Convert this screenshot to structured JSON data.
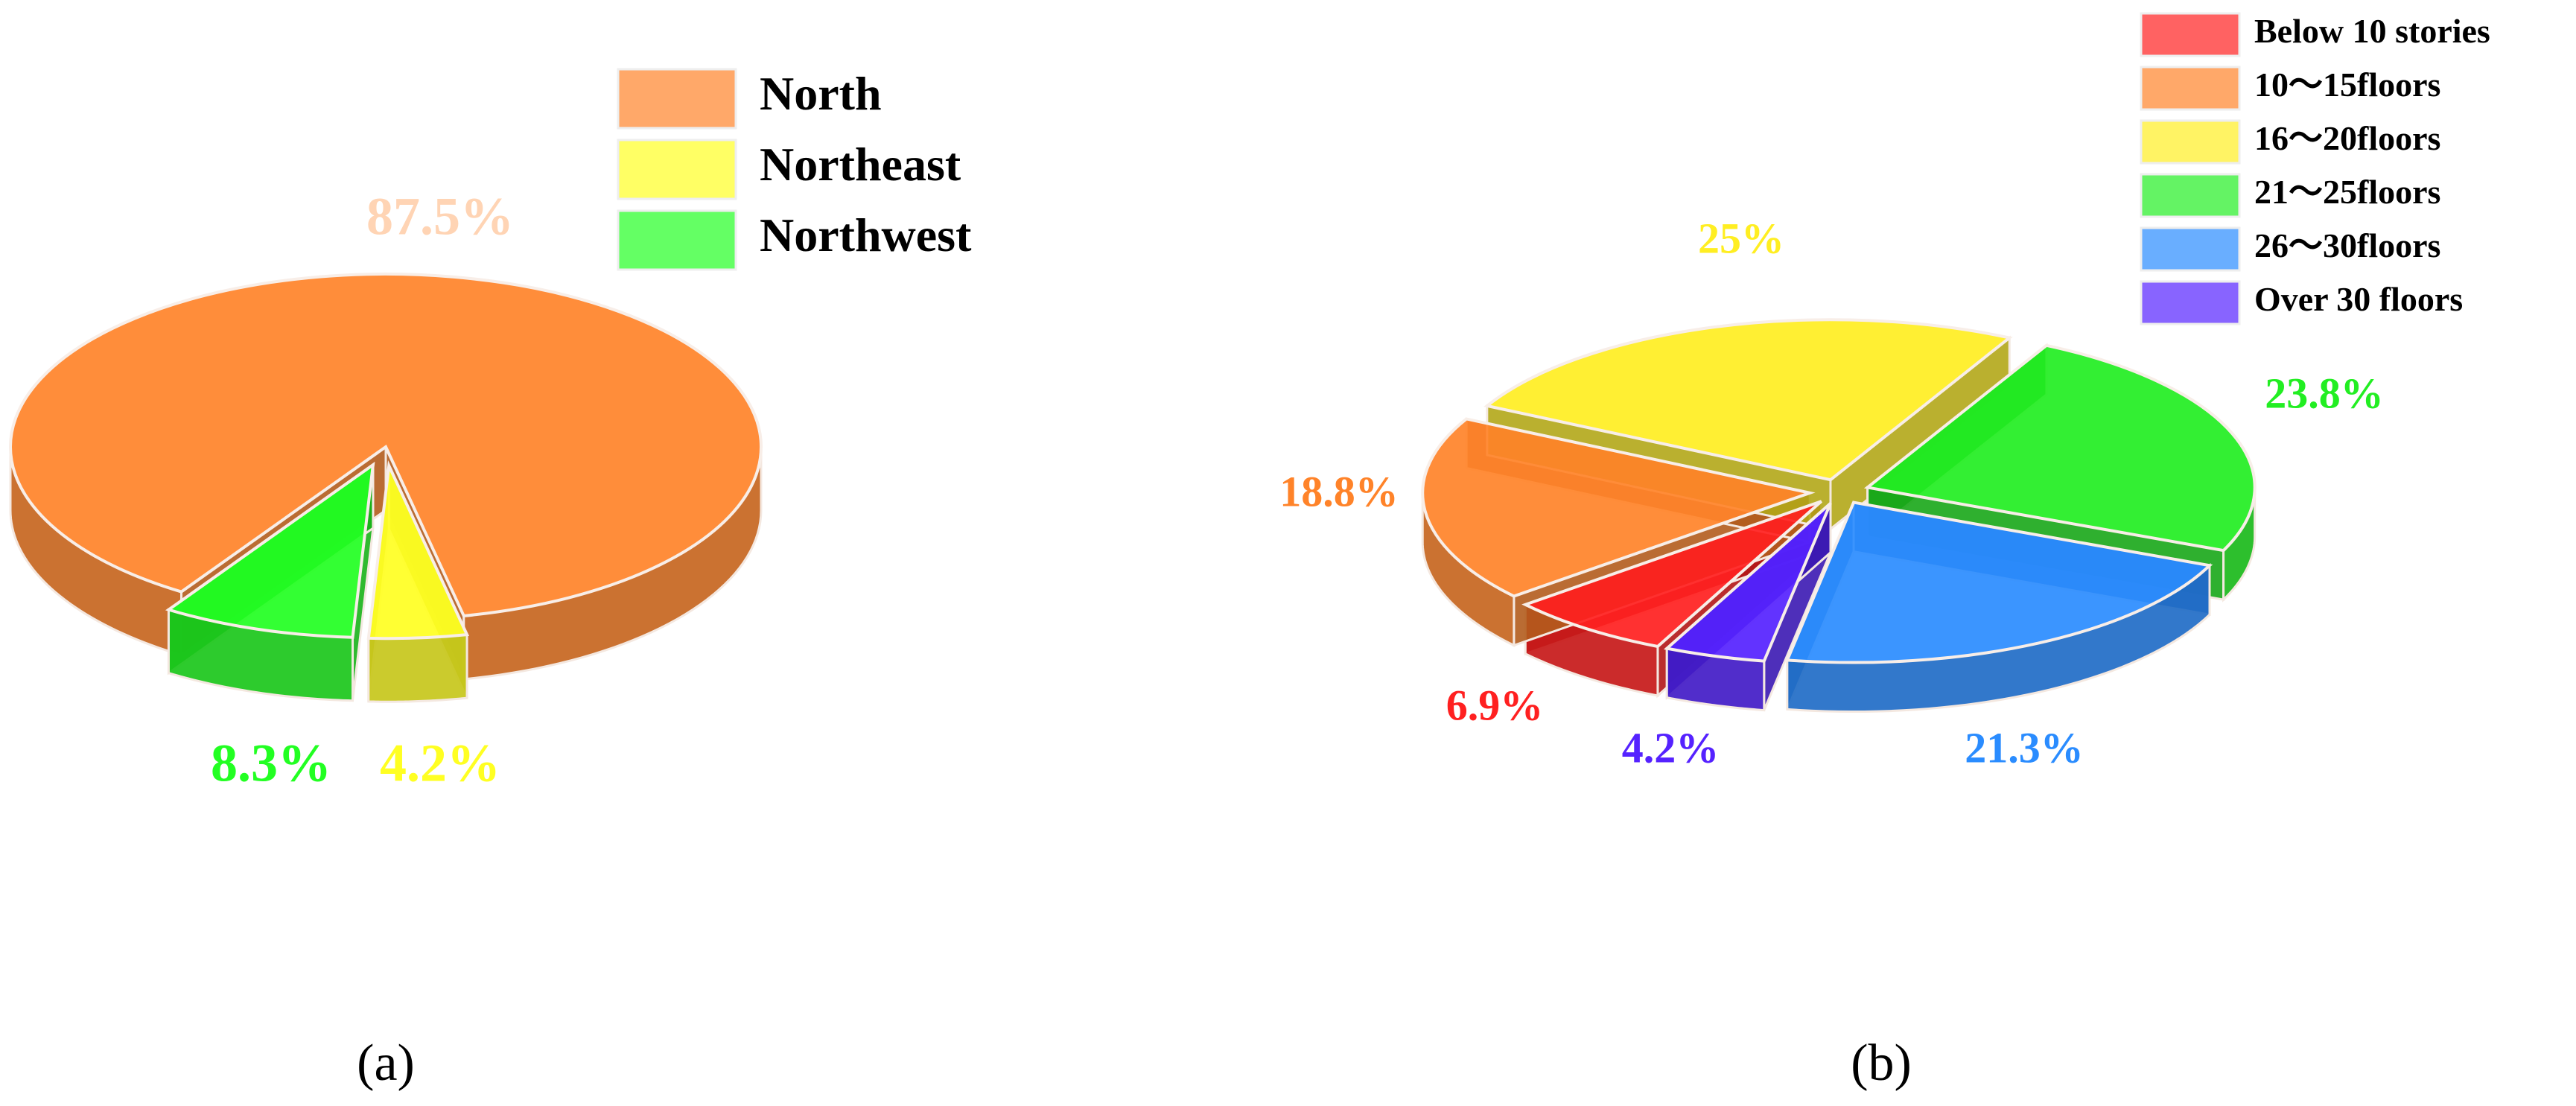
{
  "chart_data": [
    {
      "type": "pie",
      "caption": "(a)",
      "categories": [
        "North",
        "Northeast",
        "Northwest"
      ],
      "values": [
        87.5,
        4.2,
        8.3
      ],
      "value_labels": [
        "87.5%",
        "4.2%",
        "8.3%"
      ],
      "colors": [
        "#ff8329",
        "#ffff22",
        "#22ff22"
      ]
    },
    {
      "type": "pie",
      "caption": "(b)",
      "categories": [
        "Below 10 stories",
        "10～15floors",
        "16～20floors",
        "21～25floors",
        "26～30floors",
        "Over 30 floors"
      ],
      "values": [
        6.9,
        18.8,
        25,
        23.8,
        21.3,
        4.2
      ],
      "value_labels": [
        "6.9%",
        "18.8%",
        "25%",
        "23.8%",
        "21.3%",
        "4.2%"
      ],
      "colors": [
        "#ff2020",
        "#ff8329",
        "#ffee22",
        "#22ee22",
        "#2a8cff",
        "#5522ff"
      ]
    }
  ]
}
